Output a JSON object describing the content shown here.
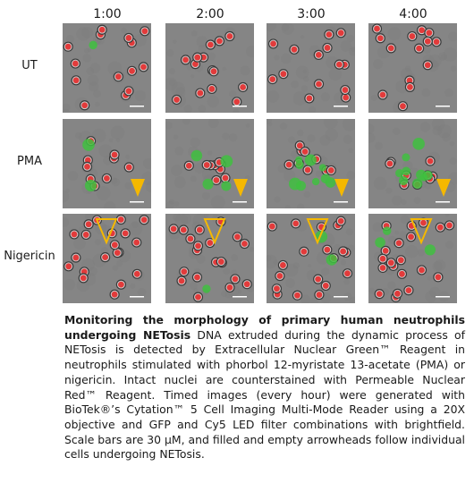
{
  "figure": {
    "time_points": [
      "1:00",
      "2:00",
      "3:00",
      "4:00"
    ],
    "conditions": [
      "UT",
      "PMA",
      "Nigericin"
    ],
    "colors": {
      "background": "#858585",
      "nucleus_red": "#e23b3b",
      "extruded_dna_green": "#3fbf3f",
      "arrowhead": "#f5b800"
    },
    "markers": {
      "PMA": "filled-arrowhead",
      "Nigericin": "empty-arrowhead"
    }
  },
  "caption": {
    "title": "Monitoring the morphology of primary human neutrophils undergoing NETosis",
    "body": " DNA extruded during the dynamic process of NETosis is detected by Extracellular Nuclear Green™ Reagent in neutrophils stimulated with phorbol 12-myristate 13-acetate (PMA) or nigericin. Intact nuclei are counterstained with Permeable Nuclear Red™ Reagent. Timed images (every hour) were generated with BioTek®’s Cytation™ 5 Cell Imaging Multi-Mode Reader using a 20X objective and GFP and Cy5 LED filter combinations with brightfield. Scale bars are 30 µM, and filled and empty arrowheads follow individual cells undergoing NETosis."
  }
}
